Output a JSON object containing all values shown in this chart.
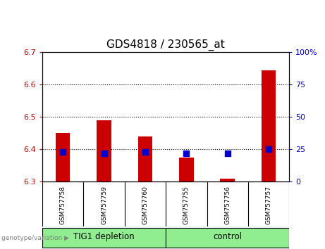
{
  "title": "GDS4818 / 230565_at",
  "samples": [
    "GSM757758",
    "GSM757759",
    "GSM757760",
    "GSM757755",
    "GSM757756",
    "GSM757757"
  ],
  "bar_bottom": 6.3,
  "bar_tops": [
    6.45,
    6.49,
    6.44,
    6.375,
    6.31,
    6.645
  ],
  "percentile_ranks": [
    23,
    22,
    23,
    22,
    22,
    25
  ],
  "ylim_left": [
    6.3,
    6.7
  ],
  "ylim_right": [
    0,
    100
  ],
  "yticks_left": [
    6.3,
    6.4,
    6.5,
    6.6,
    6.7
  ],
  "yticks_right": [
    0,
    25,
    50,
    75,
    100
  ],
  "bar_color": "#CC0000",
  "dot_color": "#0000CC",
  "left_tick_color": "#CC0000",
  "right_tick_color": "#0000CC",
  "title_fontsize": 11,
  "tick_fontsize": 8,
  "label_fontsize": 7,
  "legend_fontsize": 7.5,
  "group_label_fontsize": 8.5,
  "bar_width": 0.35,
  "dot_size": 28,
  "plot_bg": "#FFFFFF",
  "sample_bg": "#C8C8C8",
  "group_color": "#90EE90",
  "group_ranges": [
    [
      -0.5,
      2.5,
      "TIG1 depletion"
    ],
    [
      2.5,
      5.5,
      "control"
    ]
  ],
  "genotype_label": "genotype/variation ▶"
}
